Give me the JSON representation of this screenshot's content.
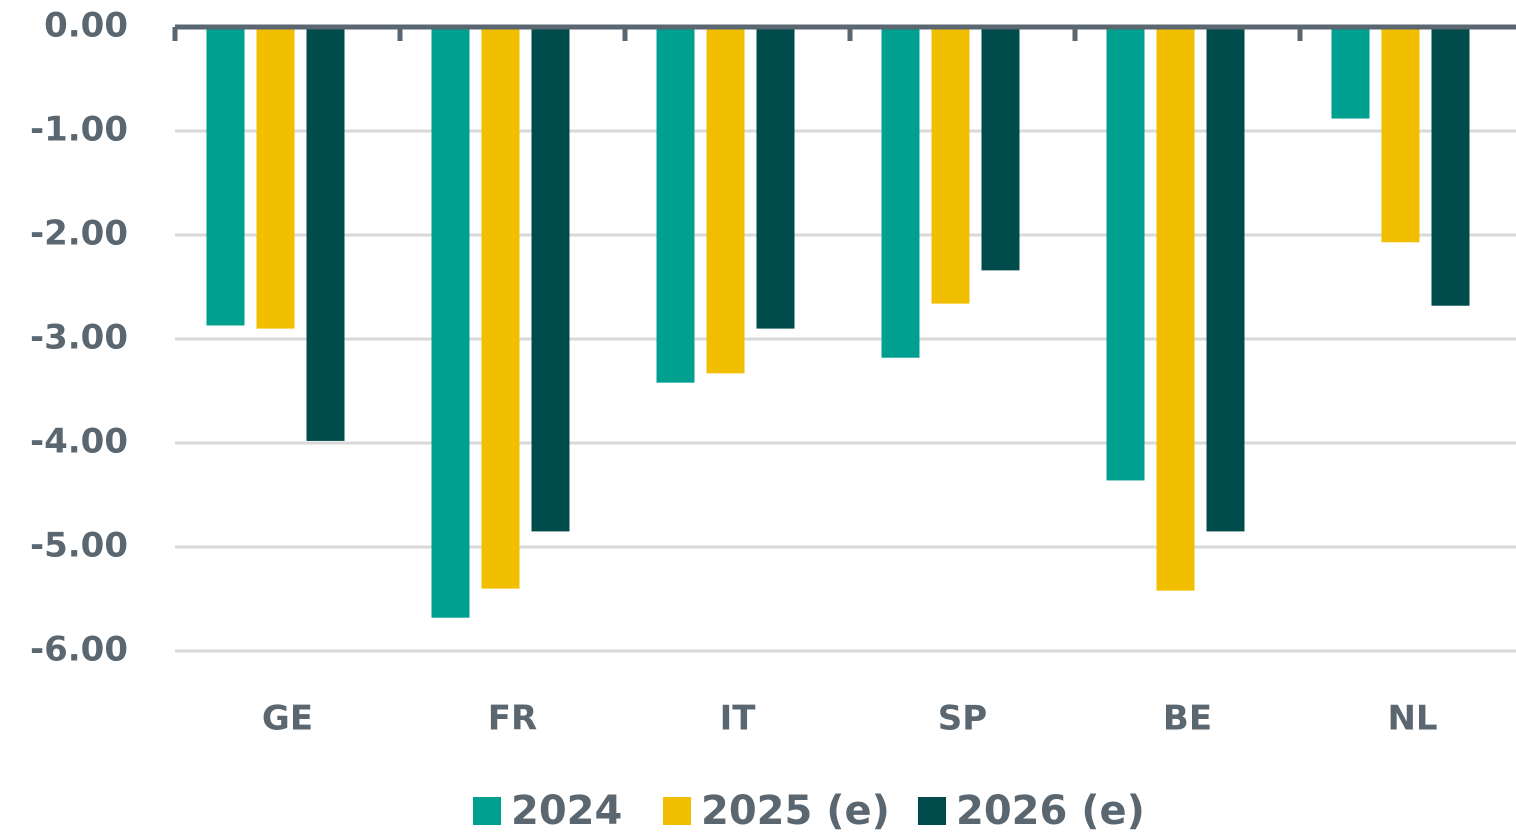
{
  "chart_data": {
    "type": "bar",
    "categories": [
      "GE",
      "FR",
      "IT",
      "SP",
      "BE",
      "NL"
    ],
    "series": [
      {
        "name": "2024",
        "color": "#00a091",
        "values": [
          -2.87,
          -5.68,
          -3.42,
          -3.18,
          -4.36,
          -0.88
        ]
      },
      {
        "name": "2025 (e)",
        "color": "#f2be00",
        "values": [
          -2.9,
          -5.4,
          -3.33,
          -2.66,
          -5.42,
          -2.07
        ]
      },
      {
        "name": "2026 (e)",
        "color": "#004b4b",
        "values": [
          -3.98,
          -4.85,
          -2.9,
          -2.34,
          -4.85,
          -2.68
        ]
      }
    ],
    "ylim": [
      -6,
      0
    ],
    "yticks": [
      {
        "value": 0,
        "label": "0.00"
      },
      {
        "value": -1,
        "label": "-1.00"
      },
      {
        "value": -2,
        "label": "-2.00"
      },
      {
        "value": -3,
        "label": "-3.00"
      },
      {
        "value": -4,
        "label": "-4.00"
      },
      {
        "value": -5,
        "label": "-5.00"
      },
      {
        "value": -6,
        "label": "-6.00"
      }
    ],
    "grid": true
  }
}
